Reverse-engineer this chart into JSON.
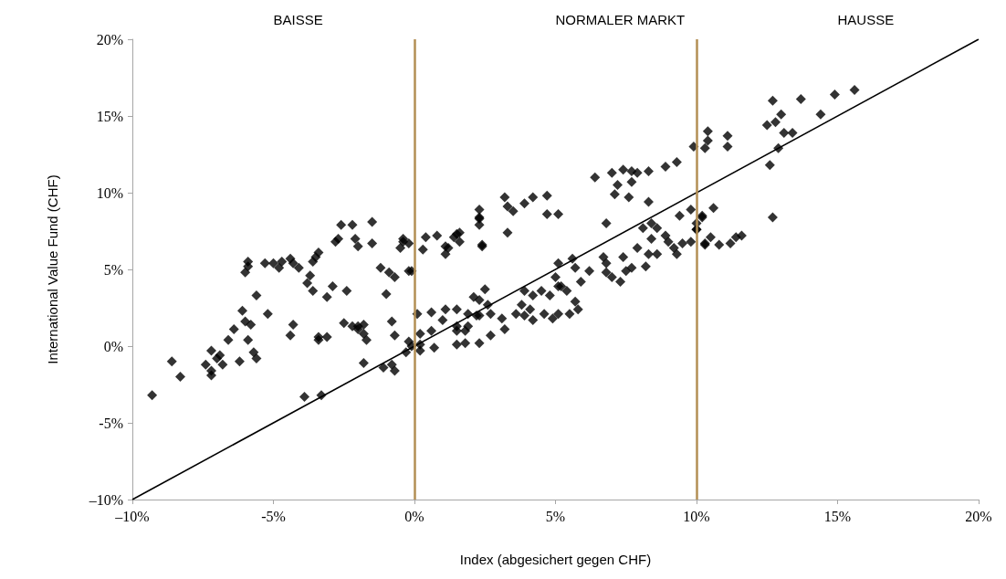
{
  "chart_data": {
    "type": "scatter",
    "xlabel": "Index (abgesichert gegen CHF)",
    "ylabel": "International Value Fund (CHF)",
    "annotations": [
      "BAISSE",
      "NORMALER MARKT",
      "HAUSSE"
    ],
    "marker": "diamond",
    "grid": false,
    "xlim": [
      -10,
      20
    ],
    "ylim": [
      -10,
      20
    ],
    "xticks": [
      {
        "value": -10,
        "label": "–10%"
      },
      {
        "value": -5,
        "label": "-5%"
      },
      {
        "value": 0,
        "label": "0%"
      },
      {
        "value": 5,
        "label": "5%"
      },
      {
        "value": 10,
        "label": "10%"
      },
      {
        "value": 15,
        "label": "15%"
      },
      {
        "value": 20,
        "label": "20%"
      }
    ],
    "yticks": [
      {
        "value": -10,
        "label": "–10%"
      },
      {
        "value": -5,
        "label": "-5%"
      },
      {
        "value": 0,
        "label": "0%"
      },
      {
        "value": 5,
        "label": "5%"
      },
      {
        "value": 10,
        "label": "10%"
      },
      {
        "value": 15,
        "label": "15%"
      },
      {
        "value": 20,
        "label": "20%"
      }
    ],
    "ref_lines": [
      {
        "axis": "x",
        "value": 0,
        "label": null,
        "color": "#b38f55"
      },
      {
        "axis": "x",
        "value": 10,
        "label": null,
        "color": "#b38f55"
      }
    ],
    "series": [
      {
        "color": "#000000",
        "x": [
          -9.3,
          -8.6,
          -8.3,
          -7.4,
          -7.2,
          -7.2,
          -7.2,
          -7.0,
          -6.9,
          -6.8,
          -6.6,
          -6.4,
          -6.2,
          -6.1,
          -6.0,
          -5.6,
          -6.0,
          -5.9,
          -5.9,
          -5.8,
          -5.9,
          -5.7,
          -5.6,
          -5.3,
          -5.2,
          -5.0,
          -4.8,
          -4.7,
          -4.4,
          -4.3,
          -4.1,
          -4.3,
          -4.4,
          -3.7,
          -3.8,
          -3.6,
          -3.6,
          -3.5,
          -3.4,
          -3.9,
          -3.3,
          -3.4,
          -3.4,
          -3.1,
          -3.1,
          -2.9,
          -2.8,
          -2.7,
          -2.6,
          -2.4,
          -2.5,
          -2.2,
          -2.1,
          -2.0,
          -2.2,
          -2.0,
          -2.0,
          -1.8,
          -1.8,
          -1.8,
          -1.7,
          -1.5,
          -1.5,
          -1.2,
          -1.0,
          -0.9,
          -0.7,
          -0.8,
          -0.7,
          -0.8,
          -0.7,
          -1.1,
          -0.5,
          -0.4,
          -0.2,
          -0.2,
          -0.1,
          -0.3,
          -0.2,
          0.1,
          0.2,
          0.2,
          0.2,
          0.6,
          0.7,
          1.0,
          1.1,
          1.2,
          1.4,
          1.6,
          1.5,
          1.9,
          1.8,
          1.9,
          2.2,
          2.3,
          2.3,
          2.4,
          3.2,
          3.3,
          3.5,
          3.9,
          4.2,
          4.7,
          4.7,
          5.1,
          2.3,
          2.3,
          2.3,
          3.3,
          2.4,
          1.5,
          1.6,
          0.8,
          0.4,
          1.1,
          0.3,
          -0.1,
          -0.4,
          0.6,
          1.1,
          1.5,
          2.1,
          2.5,
          2.6,
          2.7,
          2.3,
          1.5,
          1.8,
          1.5,
          2.3,
          2.7,
          3.2,
          3.1,
          3.9,
          4.2,
          4.5,
          4.8,
          5.0,
          5.1,
          5.2,
          5.4,
          5.6,
          5.7,
          5.9,
          6.2,
          3.8,
          3.6,
          3.9,
          4.2,
          4.1,
          4.6,
          4.9,
          5.1,
          5.5,
          5.8,
          5.7,
          5.1,
          6.4,
          7.0,
          7.4,
          7.7,
          7.9,
          8.3,
          8.9,
          9.3,
          7.7,
          7.2,
          7.1,
          7.6,
          8.3,
          6.8,
          6.7,
          6.8,
          6.8,
          7.0,
          7.3,
          7.4,
          7.5,
          7.7,
          7.9,
          8.2,
          8.3,
          8.6,
          8.4,
          8.1,
          8.4,
          8.6,
          8.9,
          9.0,
          9.2,
          9.3,
          9.4,
          9.8,
          9.5,
          9.8,
          10.0,
          10.2,
          10.3,
          9.9,
          10.3,
          10.4,
          10.4,
          11.1,
          11.1,
          12.7,
          12.5,
          12.8,
          13.0,
          13.1,
          13.4,
          13.7,
          14.4,
          14.9,
          15.6,
          12.9,
          12.6,
          12.7,
          10.2,
          10.6,
          10.0,
          10.0,
          10.3,
          10.5,
          10.8,
          11.2,
          11.4,
          11.6
        ],
        "values": [
          -3.2,
          -1.0,
          -2.0,
          -1.2,
          -1.6,
          -0.3,
          -1.9,
          -0.8,
          -0.6,
          -1.2,
          0.4,
          1.1,
          -1.0,
          2.3,
          1.6,
          3.3,
          4.8,
          5.2,
          5.5,
          1.4,
          0.4,
          -0.4,
          -0.8,
          5.4,
          2.1,
          5.4,
          5.1,
          5.5,
          5.7,
          5.4,
          5.1,
          1.4,
          0.7,
          4.6,
          4.1,
          3.6,
          5.5,
          5.8,
          6.1,
          -3.3,
          -3.2,
          0.4,
          0.6,
          0.6,
          3.2,
          3.9,
          6.8,
          7.0,
          7.9,
          3.6,
          1.5,
          7.9,
          7.0,
          6.5,
          1.3,
          1.1,
          1.3,
          1.4,
          -1.1,
          0.8,
          0.4,
          8.1,
          6.7,
          5.1,
          3.4,
          4.8,
          4.5,
          1.6,
          0.7,
          -1.2,
          -1.6,
          -1.4,
          6.4,
          7.0,
          6.7,
          4.9,
          0.0,
          -0.4,
          0.3,
          2.1,
          0.8,
          0.1,
          -0.3,
          1.0,
          -0.1,
          1.7,
          6.0,
          6.4,
          7.1,
          7.4,
          1.0,
          2.1,
          0.2,
          1.3,
          2.0,
          3.0,
          8.4,
          6.6,
          9.7,
          9.1,
          8.8,
          9.3,
          9.7,
          9.8,
          8.6,
          8.6,
          8.9,
          8.3,
          7.9,
          7.4,
          6.5,
          7.3,
          6.8,
          7.2,
          7.1,
          6.5,
          6.3,
          4.9,
          6.8,
          2.2,
          2.4,
          2.4,
          3.2,
          3.7,
          2.7,
          2.1,
          2.0,
          1.3,
          1.0,
          0.1,
          0.2,
          0.7,
          1.1,
          1.8,
          3.6,
          3.3,
          3.6,
          3.3,
          4.5,
          5.4,
          3.9,
          3.6,
          5.7,
          5.1,
          4.2,
          4.9,
          2.7,
          2.1,
          2.0,
          1.7,
          2.4,
          2.1,
          1.8,
          2.1,
          2.1,
          2.4,
          2.9,
          3.9,
          11.0,
          11.3,
          11.5,
          11.4,
          11.3,
          11.4,
          11.7,
          12.0,
          10.7,
          10.5,
          9.9,
          9.7,
          9.4,
          8.0,
          5.8,
          5.4,
          4.8,
          4.5,
          4.2,
          5.8,
          4.9,
          5.1,
          6.4,
          5.2,
          6.0,
          6.0,
          7.0,
          7.7,
          8.0,
          7.7,
          7.2,
          6.8,
          6.4,
          6.0,
          8.5,
          8.9,
          6.7,
          6.8,
          7.6,
          8.4,
          6.6,
          13.0,
          12.9,
          13.4,
          14.0,
          13.7,
          13.0,
          16.0,
          14.4,
          14.6,
          15.1,
          13.9,
          13.9,
          16.1,
          15.1,
          16.4,
          16.7,
          12.9,
          11.8,
          8.4,
          8.5,
          9.0,
          8.0,
          7.6,
          6.7,
          7.1,
          6.6,
          6.7,
          7.1,
          7.2
        ]
      },
      {
        "type": "line",
        "color": "#000000",
        "marker": "none",
        "x": [
          -10,
          20
        ],
        "values": [
          -10,
          20
        ]
      }
    ]
  }
}
